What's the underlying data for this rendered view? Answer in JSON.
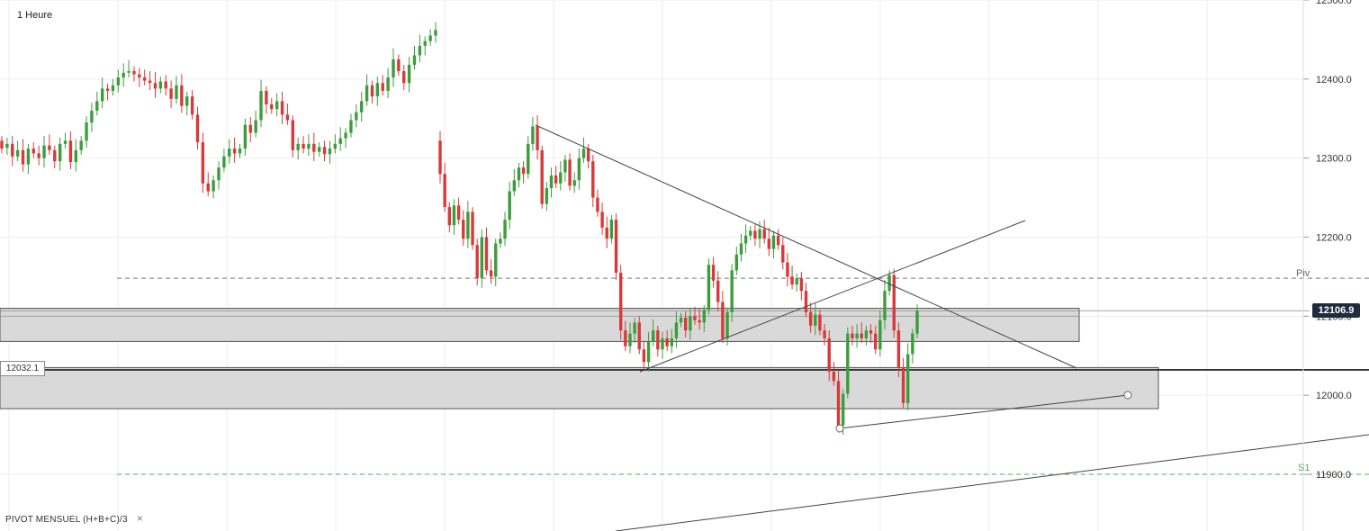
{
  "header": {
    "timeframe": "1 Heure"
  },
  "legend": {
    "indicator": "PIVOT  MENSUEL  (H+B+C)/3",
    "close_symbol": "×"
  },
  "levels": {
    "pivot_label": "Piv",
    "s1_label": "S1",
    "pivot_value": 12148,
    "s1_value": 11900,
    "current_price": 12106.9,
    "current_price_label": "12106.9",
    "support_line": 12032.1,
    "support_label": "12032.1"
  },
  "colors": {
    "up": "#3c9d3c",
    "down": "#d63a3a",
    "pivot": "#7a7a7a",
    "s1": "#5aad5a",
    "zone": "#d9d9d9"
  },
  "chart_data": {
    "type": "candlestick",
    "title": "",
    "xlabel": "",
    "ylabel": "",
    "ylim": [
      11862,
      12520
    ],
    "y_ticks": [
      12500,
      12400,
      12300,
      12200,
      12100,
      12000,
      11900
    ],
    "y_tick_labels": [
      "12500.0",
      "12400.0",
      "12300.0",
      "12200.0",
      "12100.0",
      "12000.0",
      "11900.0"
    ],
    "grid": true,
    "zones": [
      {
        "low": 12068,
        "high": 12110
      },
      {
        "low": 11983,
        "high": 12035
      }
    ],
    "candles": [
      {
        "o": 12322,
        "c": 12312
      },
      {
        "o": 12313,
        "c": 12318
      },
      {
        "o": 12318,
        "c": 12302
      },
      {
        "o": 12302,
        "c": 12310
      },
      {
        "o": 12310,
        "c": 12292
      },
      {
        "o": 12292,
        "c": 12312
      },
      {
        "o": 12312,
        "c": 12306
      },
      {
        "o": 12306,
        "c": 12300
      },
      {
        "o": 12300,
        "c": 12316
      },
      {
        "o": 12316,
        "c": 12310
      },
      {
        "o": 12310,
        "c": 12296
      },
      {
        "o": 12296,
        "c": 12318
      },
      {
        "o": 12318,
        "c": 12322
      },
      {
        "o": 12322,
        "c": 12295
      },
      {
        "o": 12295,
        "c": 12310
      },
      {
        "o": 12310,
        "c": 12322
      },
      {
        "o": 12322,
        "c": 12345
      },
      {
        "o": 12345,
        "c": 12360
      },
      {
        "o": 12360,
        "c": 12372
      },
      {
        "o": 12372,
        "c": 12388
      },
      {
        "o": 12388,
        "c": 12385
      },
      {
        "o": 12385,
        "c": 12392
      },
      {
        "o": 12392,
        "c": 12402
      },
      {
        "o": 12402,
        "c": 12408
      },
      {
        "o": 12408,
        "c": 12410
      },
      {
        "o": 12410,
        "c": 12406
      },
      {
        "o": 12406,
        "c": 12402
      },
      {
        "o": 12402,
        "c": 12398
      },
      {
        "o": 12398,
        "c": 12395
      },
      {
        "o": 12395,
        "c": 12388
      },
      {
        "o": 12388,
        "c": 12397
      },
      {
        "o": 12397,
        "c": 12388
      },
      {
        "o": 12388,
        "c": 12375
      },
      {
        "o": 12375,
        "c": 12392
      },
      {
        "o": 12392,
        "c": 12366
      },
      {
        "o": 12366,
        "c": 12378
      },
      {
        "o": 12378,
        "c": 12355
      },
      {
        "o": 12355,
        "c": 12320
      },
      {
        "o": 12320,
        "c": 12268
      },
      {
        "o": 12268,
        "c": 12258
      },
      {
        "o": 12258,
        "c": 12272
      },
      {
        "o": 12272,
        "c": 12288
      },
      {
        "o": 12288,
        "c": 12302
      },
      {
        "o": 12302,
        "c": 12312
      },
      {
        "o": 12312,
        "c": 12306
      },
      {
        "o": 12306,
        "c": 12312
      },
      {
        "o": 12312,
        "c": 12342
      },
      {
        "o": 12342,
        "c": 12332
      },
      {
        "o": 12332,
        "c": 12348
      },
      {
        "o": 12348,
        "c": 12385
      },
      {
        "o": 12385,
        "c": 12368
      },
      {
        "o": 12368,
        "c": 12362
      },
      {
        "o": 12362,
        "c": 12372
      },
      {
        "o": 12372,
        "c": 12355
      },
      {
        "o": 12355,
        "c": 12348
      },
      {
        "o": 12348,
        "c": 12310
      },
      {
        "o": 12310,
        "c": 12318
      },
      {
        "o": 12318,
        "c": 12312
      },
      {
        "o": 12312,
        "c": 12318
      },
      {
        "o": 12318,
        "c": 12308
      },
      {
        "o": 12308,
        "c": 12314
      },
      {
        "o": 12314,
        "c": 12305
      },
      {
        "o": 12305,
        "c": 12312
      },
      {
        "o": 12312,
        "c": 12318
      },
      {
        "o": 12318,
        "c": 12325
      },
      {
        "o": 12325,
        "c": 12332
      },
      {
        "o": 12332,
        "c": 12348
      },
      {
        "o": 12348,
        "c": 12358
      },
      {
        "o": 12358,
        "c": 12372
      },
      {
        "o": 12372,
        "c": 12392
      },
      {
        "o": 12392,
        "c": 12378
      },
      {
        "o": 12378,
        "c": 12395
      },
      {
        "o": 12395,
        "c": 12385
      },
      {
        "o": 12385,
        "c": 12402
      },
      {
        "o": 12402,
        "c": 12425
      },
      {
        "o": 12425,
        "c": 12410
      },
      {
        "o": 12410,
        "c": 12395
      },
      {
        "o": 12395,
        "c": 12418
      },
      {
        "o": 12418,
        "c": 12430
      },
      {
        "o": 12430,
        "c": 12442
      },
      {
        "o": 12442,
        "c": 12448
      },
      {
        "o": 12448,
        "c": 12455
      },
      {
        "o": 12455,
        "c": 12462
      },
      {
        "o": 12322,
        "c": 12280
      },
      {
        "o": 12280,
        "c": 12238
      },
      {
        "o": 12238,
        "c": 12215
      },
      {
        "o": 12215,
        "c": 12240
      },
      {
        "o": 12240,
        "c": 12222
      },
      {
        "o": 12222,
        "c": 12198
      },
      {
        "o": 12198,
        "c": 12232
      },
      {
        "o": 12232,
        "c": 12190
      },
      {
        "o": 12190,
        "c": 12148
      },
      {
        "o": 12148,
        "c": 12200
      },
      {
        "o": 12200,
        "c": 12158
      },
      {
        "o": 12158,
        "c": 12150
      },
      {
        "o": 12150,
        "c": 12192
      },
      {
        "o": 12192,
        "c": 12198
      },
      {
        "o": 12198,
        "c": 12222
      },
      {
        "o": 12222,
        "c": 12258
      },
      {
        "o": 12258,
        "c": 12272
      },
      {
        "o": 12272,
        "c": 12288
      },
      {
        "o": 12288,
        "c": 12280
      },
      {
        "o": 12280,
        "c": 12318
      },
      {
        "o": 12318,
        "c": 12340
      },
      {
        "o": 12340,
        "c": 12310
      },
      {
        "o": 12310,
        "c": 12242
      },
      {
        "o": 12242,
        "c": 12262
      },
      {
        "o": 12262,
        "c": 12278
      },
      {
        "o": 12278,
        "c": 12268
      },
      {
        "o": 12268,
        "c": 12282
      },
      {
        "o": 12282,
        "c": 12298
      },
      {
        "o": 12298,
        "c": 12265
      },
      {
        "o": 12265,
        "c": 12272
      },
      {
        "o": 12272,
        "c": 12300
      },
      {
        "o": 12300,
        "c": 12312
      },
      {
        "o": 12312,
        "c": 12296
      },
      {
        "o": 12296,
        "c": 12250
      },
      {
        "o": 12250,
        "c": 12232
      },
      {
        "o": 12232,
        "c": 12212
      },
      {
        "o": 12212,
        "c": 12198
      },
      {
        "o": 12198,
        "c": 12222
      },
      {
        "o": 12222,
        "c": 12155
      },
      {
        "o": 12155,
        "c": 12082
      },
      {
        "o": 12082,
        "c": 12062
      },
      {
        "o": 12062,
        "c": 12078
      },
      {
        "o": 12078,
        "c": 12092
      },
      {
        "o": 12092,
        "c": 12058
      },
      {
        "o": 12058,
        "c": 12042
      },
      {
        "o": 12042,
        "c": 12068
      },
      {
        "o": 12068,
        "c": 12082
      },
      {
        "o": 12082,
        "c": 12058
      },
      {
        "o": 12058,
        "c": 12072
      },
      {
        "o": 12072,
        "c": 12062
      },
      {
        "o": 12062,
        "c": 12072
      },
      {
        "o": 12072,
        "c": 12092
      },
      {
        "o": 12092,
        "c": 12098
      },
      {
        "o": 12098,
        "c": 12082
      },
      {
        "o": 12082,
        "c": 12100
      },
      {
        "o": 12100,
        "c": 12095
      },
      {
        "o": 12095,
        "c": 12092
      },
      {
        "o": 12092,
        "c": 12108
      },
      {
        "o": 12108,
        "c": 12165
      },
      {
        "o": 12165,
        "c": 12145
      },
      {
        "o": 12145,
        "c": 12118
      },
      {
        "o": 12118,
        "c": 12072
      },
      {
        "o": 12072,
        "c": 12105
      },
      {
        "o": 12105,
        "c": 12158
      },
      {
        "o": 12158,
        "c": 12178
      },
      {
        "o": 12178,
        "c": 12192
      },
      {
        "o": 12192,
        "c": 12202
      },
      {
        "o": 12202,
        "c": 12208
      },
      {
        "o": 12208,
        "c": 12198
      },
      {
        "o": 12198,
        "c": 12210
      },
      {
        "o": 12210,
        "c": 12198
      },
      {
        "o": 12198,
        "c": 12185
      },
      {
        "o": 12185,
        "c": 12202
      },
      {
        "o": 12202,
        "c": 12190
      },
      {
        "o": 12190,
        "c": 12168
      },
      {
        "o": 12168,
        "c": 12150
      },
      {
        "o": 12150,
        "c": 12140
      },
      {
        "o": 12140,
        "c": 12148
      },
      {
        "o": 12148,
        "c": 12132
      },
      {
        "o": 12132,
        "c": 12105
      },
      {
        "o": 12105,
        "c": 12088
      },
      {
        "o": 12088,
        "c": 12102
      },
      {
        "o": 12102,
        "c": 12082
      },
      {
        "o": 12082,
        "c": 12072
      },
      {
        "o": 12072,
        "c": 12030
      },
      {
        "o": 12030,
        "c": 12018
      },
      {
        "o": 12018,
        "c": 11962
      },
      {
        "o": 11962,
        "c": 12002
      },
      {
        "o": 12002,
        "c": 12078
      },
      {
        "o": 12078,
        "c": 12072
      },
      {
        "o": 12072,
        "c": 12078
      },
      {
        "o": 12078,
        "c": 12072
      },
      {
        "o": 12072,
        "c": 12082
      },
      {
        "o": 12082,
        "c": 12078
      },
      {
        "o": 12078,
        "c": 12058
      },
      {
        "o": 12058,
        "c": 12095
      },
      {
        "o": 12095,
        "c": 12132
      },
      {
        "o": 12132,
        "c": 12152
      },
      {
        "o": 12152,
        "c": 12082
      },
      {
        "o": 12082,
        "c": 12035
      },
      {
        "o": 12035,
        "c": 11990
      },
      {
        "o": 11990,
        "c": 12052
      },
      {
        "o": 12052,
        "c": 12078
      },
      {
        "o": 12078,
        "c": 12106.9
      }
    ]
  }
}
